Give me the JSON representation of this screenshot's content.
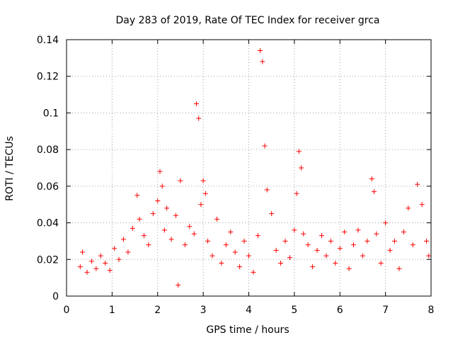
{
  "chart_data": {
    "type": "scatter",
    "title": "Day 283 of 2019, Rate Of TEC Index for receiver grca",
    "xlabel": "GPS time / hours",
    "ylabel": "ROTI / TECUs",
    "xlim": [
      0,
      8
    ],
    "ylim": [
      0,
      0.14
    ],
    "xticks": [
      "0",
      "1",
      "2",
      "3",
      "4",
      "5",
      "6",
      "7",
      "8"
    ],
    "yticks": [
      "0",
      "0.02",
      "0.04",
      "0.06",
      "0.08",
      "0.1",
      "0.12",
      "0.14"
    ],
    "grid": true,
    "legend": "none",
    "marker": "+",
    "color": "#ff0000",
    "series": [
      {
        "x": [
          0.3,
          0.35,
          0.45,
          0.55,
          0.65,
          0.75,
          0.85,
          0.95,
          1.05,
          1.15,
          1.25,
          1.35,
          1.45,
          1.55,
          1.6,
          1.7,
          1.8,
          1.9,
          2.0,
          2.05,
          2.1,
          2.15,
          2.2,
          2.3,
          2.4,
          2.45,
          2.5,
          2.6,
          2.7,
          2.8,
          2.85,
          2.9,
          2.95,
          3.0,
          3.05,
          3.1,
          3.2,
          3.3,
          3.4,
          3.5,
          3.6,
          3.7,
          3.8,
          3.9,
          4.0,
          4.1,
          4.2,
          4.25,
          4.3,
          4.35,
          4.4,
          4.5,
          4.6,
          4.7,
          4.8,
          4.9,
          5.0,
          5.05,
          5.1,
          5.15,
          5.2,
          5.3,
          5.4,
          5.5,
          5.6,
          5.7,
          5.8,
          5.9,
          6.0,
          6.1,
          6.2,
          6.3,
          6.4,
          6.5,
          6.6,
          6.7,
          6.75,
          6.8,
          6.9,
          7.0,
          7.1,
          7.2,
          7.3,
          7.4,
          7.5,
          7.6,
          7.7,
          7.8,
          7.9,
          7.95
        ],
        "y": [
          0.016,
          0.024,
          0.013,
          0.019,
          0.015,
          0.022,
          0.018,
          0.014,
          0.026,
          0.02,
          0.031,
          0.024,
          0.037,
          0.055,
          0.042,
          0.033,
          0.028,
          0.045,
          0.052,
          0.068,
          0.06,
          0.036,
          0.048,
          0.031,
          0.044,
          0.006,
          0.063,
          0.028,
          0.038,
          0.034,
          0.105,
          0.097,
          0.05,
          0.063,
          0.056,
          0.03,
          0.022,
          0.042,
          0.018,
          0.028,
          0.035,
          0.024,
          0.016,
          0.03,
          0.022,
          0.013,
          0.033,
          0.134,
          0.128,
          0.082,
          0.058,
          0.045,
          0.025,
          0.018,
          0.03,
          0.021,
          0.036,
          0.056,
          0.079,
          0.07,
          0.034,
          0.028,
          0.016,
          0.025,
          0.033,
          0.022,
          0.03,
          0.018,
          0.026,
          0.035,
          0.015,
          0.028,
          0.036,
          0.022,
          0.03,
          0.064,
          0.057,
          0.034,
          0.018,
          0.04,
          0.025,
          0.03,
          0.015,
          0.035,
          0.048,
          0.028,
          0.061,
          0.05,
          0.03,
          0.022
        ]
      }
    ]
  }
}
